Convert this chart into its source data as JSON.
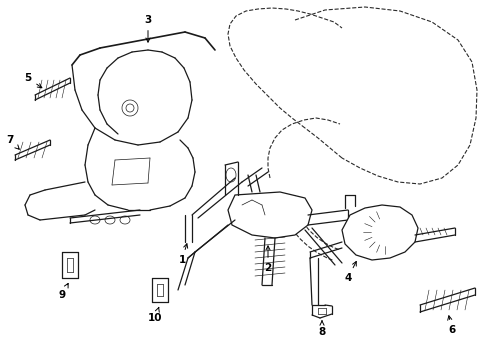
{
  "background_color": "#ffffff",
  "line_color": "#1a1a1a",
  "dashed_color": "#2a2a2a",
  "fig_width": 4.9,
  "fig_height": 3.6,
  "dpi": 100,
  "lw_main": 0.9,
  "lw_thin": 0.5,
  "lw_thick": 1.2,
  "label_fs": 7.5
}
